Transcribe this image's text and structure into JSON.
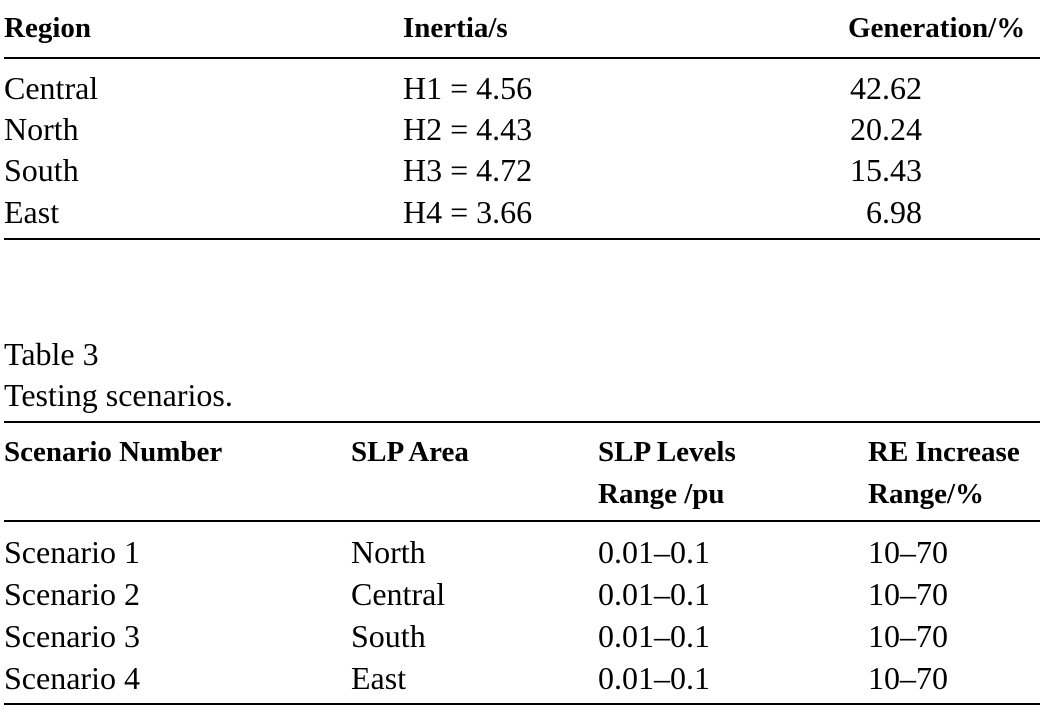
{
  "table2": {
    "headers": [
      "Region",
      "Inertia/s",
      "Generation/%"
    ],
    "rows": [
      [
        "Central",
        "H1 = 4.56",
        "42.62"
      ],
      [
        "North",
        "H2 = 4.43",
        "20.24"
      ],
      [
        "South",
        "H3 = 4.72",
        "15.43"
      ],
      [
        "East",
        "H4 = 3.66",
        "6.98"
      ]
    ]
  },
  "table3": {
    "label": "Table 3",
    "caption": "Testing scenarios.",
    "headers": [
      [
        "Scenario Number"
      ],
      [
        "SLP Area"
      ],
      [
        "SLP Levels",
        "Range /pu"
      ],
      [
        "RE Increase",
        "Range/%"
      ]
    ],
    "rows": [
      [
        "Scenario 1",
        "North",
        "0.01–0.1",
        "10–70"
      ],
      [
        "Scenario 2",
        "Central",
        "0.01–0.1",
        "10–70"
      ],
      [
        "Scenario 3",
        "South",
        "0.01–0.1",
        "10–70"
      ],
      [
        "Scenario 4",
        "East",
        "0.01–0.1",
        "10–70"
      ]
    ]
  }
}
